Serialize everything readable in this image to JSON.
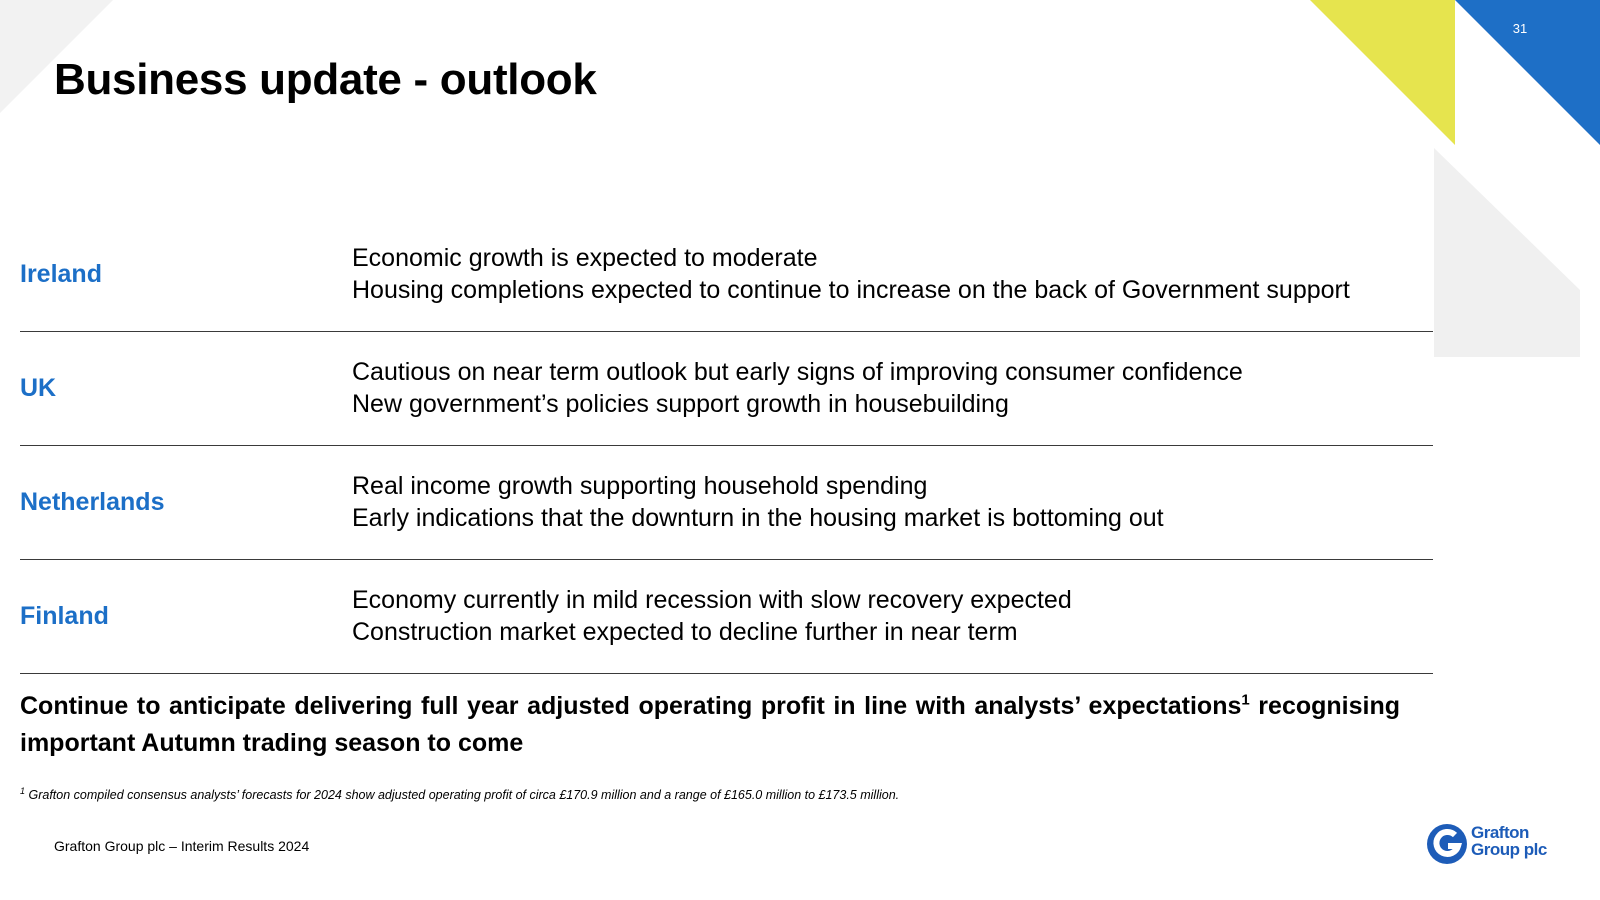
{
  "slide": {
    "page_number": "31",
    "title": "Business update - outlook",
    "colors": {
      "accent_blue": "#1c6fc7",
      "decor_yellow": "#e6e44e",
      "decor_blue": "#1e6fc6",
      "decor_grey": "#f0f0f0"
    }
  },
  "rows": [
    {
      "label": "Ireland",
      "lines": [
        "Economic growth is expected to moderate",
        "Housing completions expected to continue to increase on the back of Government support"
      ]
    },
    {
      "label": "UK",
      "lines": [
        "Cautious on near term outlook but early signs of improving consumer confidence",
        "New government’s policies support growth in housebuilding"
      ]
    },
    {
      "label": "Netherlands",
      "lines": [
        "Real income growth supporting household spending",
        "Early indications that the downturn in the housing market is bottoming out"
      ]
    },
    {
      "label": "Finland",
      "lines": [
        "Economy currently in mild recession with slow recovery expected",
        "Construction market expected to decline further in near term"
      ]
    }
  ],
  "conclusion": {
    "text_part1": "Continue to anticipate delivering full year adjusted operating profit in line with analysts’ expectations",
    "superscript": "1",
    "text_part2": " recognising important Autumn trading season to come"
  },
  "footnote": {
    "marker": "1",
    "text": " Grafton compiled consensus analysts’ forecasts for 2024 show adjusted operating profit of circa £170.9 million and a range of £165.0 million to £173.5 million."
  },
  "footer": {
    "text": "Grafton Group plc – Interim Results 2024"
  },
  "logo": {
    "line1": "Grafton",
    "line2": "Group plc",
    "icon": "grafton-g-logo-icon"
  }
}
